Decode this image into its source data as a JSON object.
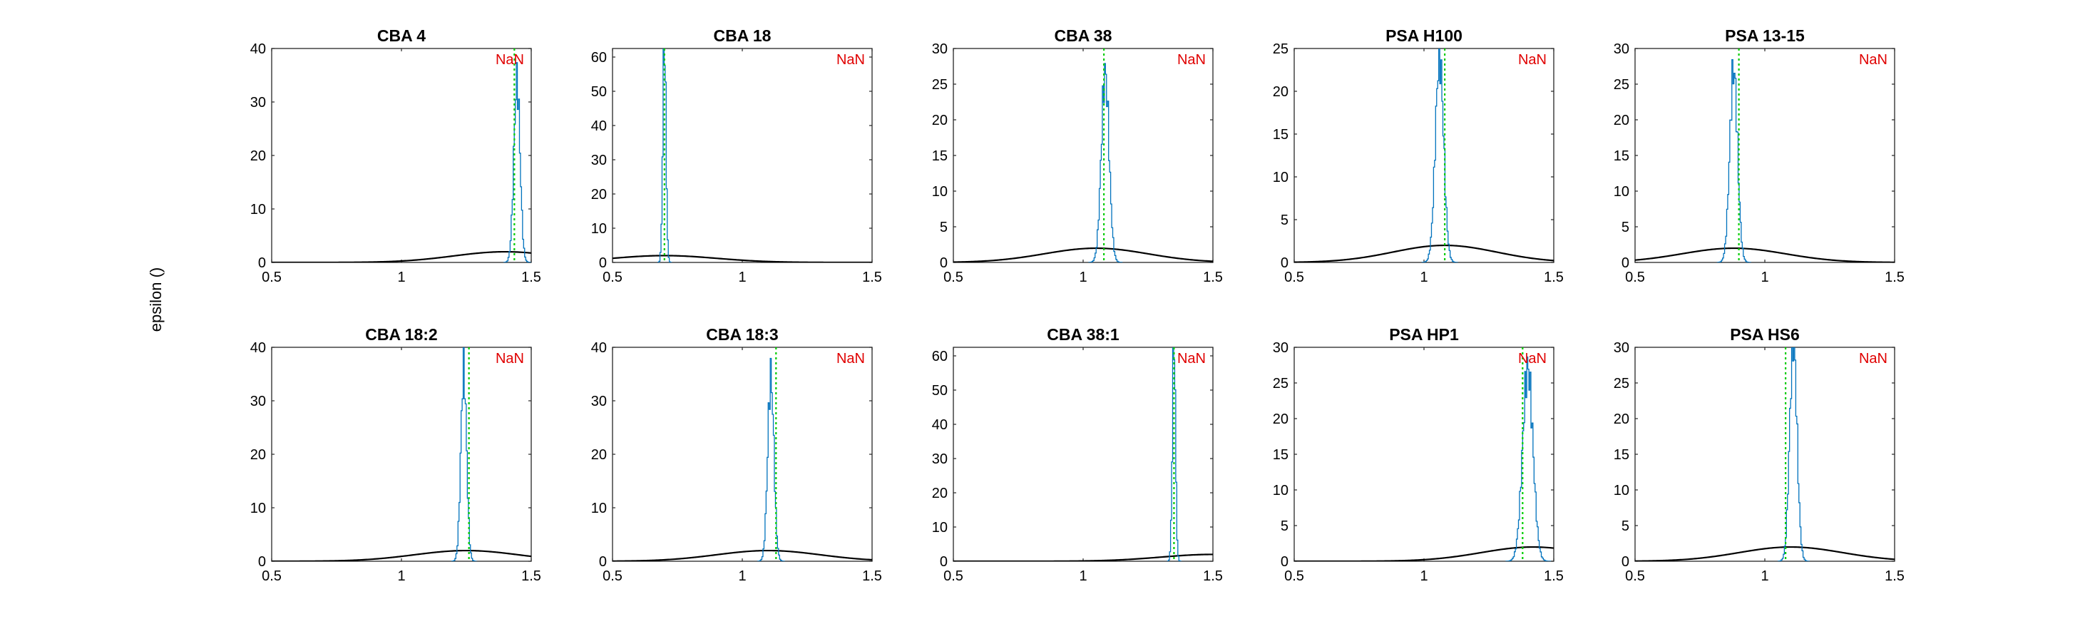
{
  "figure": {
    "ylabel": "epsilon ()"
  },
  "colors": {
    "prior": "#000000",
    "posterior": "#0072BD",
    "marker": "#00CC00",
    "annotation": "#E00000"
  },
  "chart_data": [
    {
      "type": "line",
      "title": "CBA 4",
      "annotation": "NaN",
      "xlim": [
        0.5,
        1.5
      ],
      "ylim": [
        0,
        40
      ],
      "xticks": [
        0.5,
        1,
        1.5
      ],
      "yticks": [
        0,
        10,
        20,
        30,
        40
      ],
      "marker_x": 1.435,
      "prior": {
        "mean": 1.4,
        "sd": 0.2
      },
      "posterior": {
        "mean": 1.445,
        "sd": 0.012,
        "peak": 34
      }
    },
    {
      "type": "line",
      "title": "CBA 18",
      "annotation": "NaN",
      "xlim": [
        0.5,
        1.5
      ],
      "ylim": [
        0,
        62.5
      ],
      "xticks": [
        0.5,
        1,
        1.5
      ],
      "yticks": [
        0,
        10,
        20,
        30,
        40,
        50,
        60
      ],
      "marker_x": 0.7,
      "prior": {
        "mean": 0.7,
        "sd": 0.2
      },
      "posterior": {
        "mean": 0.7,
        "sd": 0.006,
        "peak": 66
      }
    },
    {
      "type": "line",
      "title": "CBA 38",
      "annotation": "NaN",
      "xlim": [
        0.5,
        1.5
      ],
      "ylim": [
        0,
        30
      ],
      "xticks": [
        0.5,
        1,
        1.5
      ],
      "yticks": [
        0,
        5,
        10,
        15,
        20,
        25,
        30
      ],
      "marker_x": 1.08,
      "prior": {
        "mean": 1.05,
        "sd": 0.2
      },
      "posterior": {
        "mean": 1.085,
        "sd": 0.015,
        "peak": 26.5
      }
    },
    {
      "type": "line",
      "title": "PSA H100",
      "annotation": "NaN",
      "xlim": [
        0.5,
        1.5
      ],
      "ylim": [
        0,
        25
      ],
      "xticks": [
        0.5,
        1,
        1.5
      ],
      "yticks": [
        0,
        5,
        10,
        15,
        20,
        25
      ],
      "marker_x": 1.08,
      "prior": {
        "mean": 1.08,
        "sd": 0.2
      },
      "posterior": {
        "mean": 1.06,
        "sd": 0.016,
        "peak": 24
      }
    },
    {
      "type": "line",
      "title": "PSA 13-15",
      "annotation": "NaN",
      "xlim": [
        0.5,
        1.5
      ],
      "ylim": [
        0,
        30
      ],
      "xticks": [
        0.5,
        1,
        1.5
      ],
      "yticks": [
        0,
        5,
        10,
        15,
        20,
        25,
        30
      ],
      "marker_x": 0.9,
      "prior": {
        "mean": 0.88,
        "sd": 0.2
      },
      "posterior": {
        "mean": 0.88,
        "sd": 0.015,
        "peak": 27
      }
    },
    {
      "type": "line",
      "title": "CBA 18:2",
      "annotation": "NaN",
      "xlim": [
        0.5,
        1.5
      ],
      "ylim": [
        0,
        40
      ],
      "xticks": [
        0.5,
        1,
        1.5
      ],
      "yticks": [
        0,
        10,
        20,
        30,
        40
      ],
      "marker_x": 1.26,
      "prior": {
        "mean": 1.25,
        "sd": 0.2
      },
      "posterior": {
        "mean": 1.24,
        "sd": 0.011,
        "peak": 36
      }
    },
    {
      "type": "line",
      "title": "CBA 18:3",
      "annotation": "NaN",
      "xlim": [
        0.5,
        1.5
      ],
      "ylim": [
        0,
        40
      ],
      "xticks": [
        0.5,
        1,
        1.5
      ],
      "yticks": [
        0,
        10,
        20,
        30,
        40
      ],
      "marker_x": 1.13,
      "prior": {
        "mean": 1.1,
        "sd": 0.2
      },
      "posterior": {
        "mean": 1.11,
        "sd": 0.012,
        "peak": 34.5
      }
    },
    {
      "type": "line",
      "title": "CBA 38:1",
      "annotation": "NaN",
      "xlim": [
        0.5,
        1.5
      ],
      "ylim": [
        0,
        62.5
      ],
      "xticks": [
        0.5,
        1,
        1.5
      ],
      "yticks": [
        0,
        10,
        20,
        30,
        40,
        50,
        60
      ],
      "marker_x": 1.35,
      "prior": {
        "mean": 1.5,
        "sd": 0.2
      },
      "posterior": {
        "mean": 1.35,
        "sd": 0.006,
        "peak": 66
      }
    },
    {
      "type": "line",
      "title": "PSA HP1",
      "annotation": "NaN",
      "xlim": [
        0.5,
        1.5
      ],
      "ylim": [
        0,
        30
      ],
      "xticks": [
        0.5,
        1,
        1.5
      ],
      "yticks": [
        0,
        5,
        10,
        15,
        20,
        25,
        30
      ],
      "marker_x": 1.38,
      "prior": {
        "mean": 1.42,
        "sd": 0.2
      },
      "posterior": {
        "mean": 1.4,
        "sd": 0.02,
        "peak": 27
      }
    },
    {
      "type": "line",
      "title": "PSA HS6",
      "annotation": "NaN",
      "xlim": [
        0.5,
        1.5
      ],
      "ylim": [
        0,
        30
      ],
      "xticks": [
        0.5,
        1,
        1.5
      ],
      "yticks": [
        0,
        5,
        10,
        15,
        20,
        25,
        30
      ],
      "marker_x": 1.08,
      "prior": {
        "mean": 1.1,
        "sd": 0.2
      },
      "posterior": {
        "mean": 1.11,
        "sd": 0.014,
        "peak": 31
      }
    }
  ]
}
